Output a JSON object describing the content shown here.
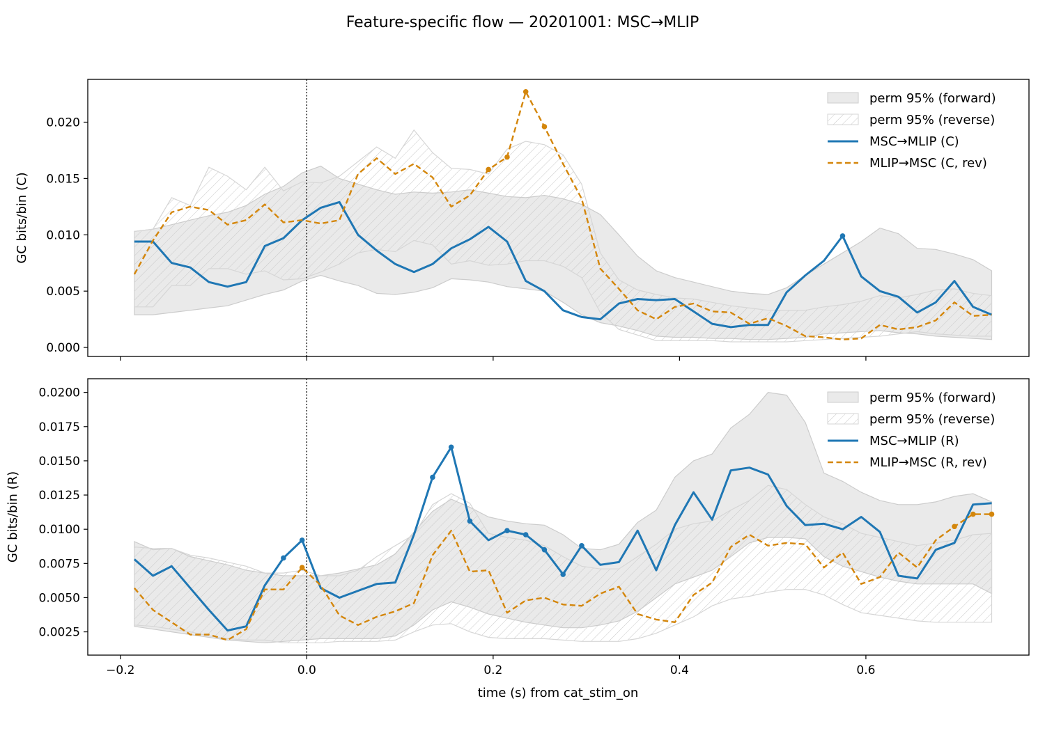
{
  "title": "Feature-specific flow — 20201001: MSC→MLIP",
  "xlabel": "time (s) from cat_stim_on",
  "colors": {
    "forward": "#1f77b4",
    "reverse": "#d4860b",
    "band": "#d9d9d9",
    "band_edge": "#cccccc",
    "hatch": "#c8c8c8"
  },
  "chart_data": [
    {
      "type": "line",
      "ylabel": "GC bits/bin (C)",
      "xlim": [
        -0.235,
        0.775
      ],
      "ylim": [
        -0.0008,
        0.0238
      ],
      "xticks": [
        -0.2,
        0.0,
        0.2,
        0.4,
        0.6
      ],
      "xtick_labels": [
        "",
        "",
        "",
        "",
        ""
      ],
      "yticks": [
        0.0,
        0.005,
        0.01,
        0.015,
        0.02
      ],
      "ytick_labels": [
        "0.000",
        "0.005",
        "0.010",
        "0.015",
        "0.020"
      ],
      "vline_x": 0.0,
      "legend_position": "top-right",
      "x": [
        -0.185,
        -0.165,
        -0.145,
        -0.125,
        -0.105,
        -0.085,
        -0.065,
        -0.045,
        -0.025,
        -0.005,
        0.015,
        0.035,
        0.055,
        0.075,
        0.095,
        0.115,
        0.135,
        0.155,
        0.175,
        0.195,
        0.215,
        0.235,
        0.255,
        0.275,
        0.295,
        0.315,
        0.335,
        0.355,
        0.375,
        0.395,
        0.415,
        0.435,
        0.455,
        0.475,
        0.495,
        0.515,
        0.535,
        0.555,
        0.575,
        0.595,
        0.615,
        0.635,
        0.655,
        0.675,
        0.695,
        0.715,
        0.735
      ],
      "bands": [
        {
          "name": "perm 95% (forward)",
          "style": "fill",
          "upper": [
            0.0103,
            0.0105,
            0.0109,
            0.0113,
            0.0117,
            0.012,
            0.0126,
            0.0136,
            0.0143,
            0.0155,
            0.0161,
            0.015,
            0.0145,
            0.014,
            0.0136,
            0.0138,
            0.0137,
            0.0138,
            0.014,
            0.0137,
            0.0134,
            0.0133,
            0.0135,
            0.0132,
            0.0127,
            0.0118,
            0.01,
            0.0081,
            0.0068,
            0.0062,
            0.0058,
            0.0054,
            0.005,
            0.0048,
            0.0047,
            0.0053,
            0.0064,
            0.0074,
            0.0084,
            0.0094,
            0.0106,
            0.0101,
            0.0088,
            0.0087,
            0.0083,
            0.0078,
            0.0068
          ],
          "lower": [
            0.0029,
            0.0029,
            0.0031,
            0.0033,
            0.0035,
            0.0037,
            0.0042,
            0.0047,
            0.0051,
            0.0059,
            0.0064,
            0.0059,
            0.0055,
            0.0048,
            0.0047,
            0.0049,
            0.0053,
            0.0061,
            0.006,
            0.0058,
            0.0054,
            0.0052,
            0.005,
            0.004,
            0.0029,
            0.0022,
            0.0019,
            0.0015,
            0.001,
            0.0009,
            0.0009,
            0.0008,
            0.0008,
            0.0007,
            0.0007,
            0.0008,
            0.0009,
            0.0012,
            0.0013,
            0.0014,
            0.0015,
            0.0013,
            0.0012,
            0.001,
            0.0009,
            0.0008,
            0.0007
          ]
        },
        {
          "name": "perm 95% (reverse)",
          "style": "hatch",
          "upper": [
            0.0103,
            0.0105,
            0.0133,
            0.0126,
            0.016,
            0.0152,
            0.014,
            0.016,
            0.0139,
            0.0147,
            0.0146,
            0.0152,
            0.0165,
            0.0178,
            0.0168,
            0.0193,
            0.0173,
            0.0159,
            0.0158,
            0.0154,
            0.0176,
            0.0183,
            0.018,
            0.0171,
            0.0145,
            0.0084,
            0.006,
            0.0051,
            0.0047,
            0.0044,
            0.0043,
            0.004,
            0.0037,
            0.0035,
            0.0033,
            0.0033,
            0.0033,
            0.0036,
            0.0038,
            0.0041,
            0.0046,
            0.0044,
            0.0047,
            0.0051,
            0.0052,
            0.0048,
            0.0046
          ],
          "lower": [
            0.0036,
            0.0036,
            0.0055,
            0.0055,
            0.007,
            0.007,
            0.0065,
            0.0068,
            0.006,
            0.0061,
            0.0067,
            0.0074,
            0.0084,
            0.0087,
            0.0085,
            0.0095,
            0.0091,
            0.0074,
            0.0077,
            0.0073,
            0.0074,
            0.0077,
            0.0077,
            0.0072,
            0.0062,
            0.0031,
            0.0016,
            0.0011,
            0.0006,
            0.0006,
            0.0006,
            0.0006,
            0.0005,
            0.0005,
            0.0005,
            0.0005,
            0.0006,
            0.0007,
            0.0008,
            0.0009,
            0.001,
            0.0012,
            0.0014,
            0.0012,
            0.0011,
            0.001,
            0.001
          ]
        }
      ],
      "series": [
        {
          "name": "MSC→MLIP (C)",
          "style": "solid",
          "values": [
            0.0094,
            0.0094,
            0.0075,
            0.0071,
            0.0058,
            0.0054,
            0.0058,
            0.009,
            0.0097,
            0.0113,
            0.0124,
            0.0129,
            0.01,
            0.0086,
            0.0074,
            0.0067,
            0.0074,
            0.0088,
            0.0096,
            0.0107,
            0.0094,
            0.0059,
            0.005,
            0.0033,
            0.0027,
            0.0025,
            0.0039,
            0.0043,
            0.0042,
            0.0043,
            0.0032,
            0.0021,
            0.0018,
            0.002,
            0.002,
            0.0049,
            0.0064,
            0.0077,
            0.0099,
            0.0063,
            0.005,
            0.0045,
            0.0031,
            0.004,
            0.0059,
            0.0036,
            0.0029
          ],
          "markers_x": [
            0.575
          ]
        },
        {
          "name": "MLIP→MSC (C, rev)",
          "style": "dashed",
          "values": [
            0.0065,
            0.0095,
            0.012,
            0.0125,
            0.0122,
            0.0109,
            0.0113,
            0.0127,
            0.0111,
            0.0113,
            0.011,
            0.0113,
            0.0154,
            0.0168,
            0.0154,
            0.0163,
            0.0151,
            0.0125,
            0.0135,
            0.0158,
            0.0169,
            0.0227,
            0.0196,
            0.0163,
            0.0132,
            0.007,
            0.0052,
            0.0033,
            0.0025,
            0.0036,
            0.0039,
            0.0032,
            0.0031,
            0.0021,
            0.0026,
            0.0019,
            0.001,
            0.0009,
            0.0007,
            0.0008,
            0.002,
            0.0016,
            0.0018,
            0.0024,
            0.004,
            0.0028,
            0.0029
          ],
          "markers_x": [
            0.195,
            0.215,
            0.235,
            0.255
          ]
        }
      ]
    },
    {
      "type": "line",
      "ylabel": "GC bits/bin (R)",
      "xlim": [
        -0.235,
        0.775
      ],
      "ylim": [
        0.0008,
        0.021
      ],
      "xticks": [
        -0.2,
        0.0,
        0.2,
        0.4,
        0.6
      ],
      "xtick_labels": [
        "−0.2",
        "0.0",
        "0.2",
        "0.4",
        "0.6"
      ],
      "yticks": [
        0.0025,
        0.005,
        0.0075,
        0.01,
        0.0125,
        0.015,
        0.0175,
        0.02
      ],
      "ytick_labels": [
        "0.0025",
        "0.0050",
        "0.0075",
        "0.0100",
        "0.0125",
        "0.0150",
        "0.0175",
        "0.0200"
      ],
      "vline_x": 0.0,
      "legend_position": "top-right",
      "x": [
        -0.185,
        -0.165,
        -0.145,
        -0.125,
        -0.105,
        -0.085,
        -0.065,
        -0.045,
        -0.025,
        -0.005,
        0.015,
        0.035,
        0.055,
        0.075,
        0.095,
        0.115,
        0.135,
        0.155,
        0.175,
        0.195,
        0.215,
        0.235,
        0.255,
        0.275,
        0.295,
        0.315,
        0.335,
        0.355,
        0.375,
        0.395,
        0.415,
        0.435,
        0.455,
        0.475,
        0.495,
        0.515,
        0.535,
        0.555,
        0.575,
        0.595,
        0.615,
        0.635,
        0.655,
        0.675,
        0.695,
        0.715,
        0.735
      ],
      "bands": [
        {
          "name": "perm 95% (forward)",
          "style": "fill",
          "upper": [
            0.0091,
            0.0085,
            0.0086,
            0.008,
            0.0077,
            0.0074,
            0.007,
            0.0068,
            0.0066,
            0.0066,
            0.0066,
            0.0068,
            0.0071,
            0.0074,
            0.0082,
            0.0098,
            0.0113,
            0.0122,
            0.0116,
            0.0109,
            0.0106,
            0.0104,
            0.0103,
            0.0096,
            0.0086,
            0.0085,
            0.0089,
            0.0105,
            0.0114,
            0.0138,
            0.015,
            0.0155,
            0.0174,
            0.0184,
            0.02,
            0.0198,
            0.0178,
            0.0141,
            0.0135,
            0.0127,
            0.0121,
            0.0118,
            0.0118,
            0.012,
            0.0124,
            0.0126,
            0.012
          ],
          "lower": [
            0.0029,
            0.0027,
            0.0025,
            0.0023,
            0.0021,
            0.0019,
            0.0018,
            0.0017,
            0.0018,
            0.0019,
            0.002,
            0.002,
            0.002,
            0.002,
            0.0022,
            0.003,
            0.0041,
            0.0047,
            0.0043,
            0.0038,
            0.0035,
            0.0032,
            0.003,
            0.0028,
            0.0028,
            0.003,
            0.0033,
            0.004,
            0.005,
            0.006,
            0.0065,
            0.007,
            0.008,
            0.009,
            0.0094,
            0.0094,
            0.0093,
            0.008,
            0.0073,
            0.0069,
            0.0065,
            0.0062,
            0.006,
            0.006,
            0.006,
            0.006,
            0.0053
          ]
        },
        {
          "name": "perm 95% (reverse)",
          "style": "hatch",
          "upper": [
            0.0087,
            0.0086,
            0.0086,
            0.0081,
            0.0079,
            0.0076,
            0.0073,
            0.0068,
            0.0068,
            0.007,
            0.0066,
            0.0066,
            0.007,
            0.008,
            0.0088,
            0.0096,
            0.0118,
            0.0126,
            0.0119,
            0.0097,
            0.0094,
            0.0092,
            0.0088,
            0.008,
            0.0073,
            0.0071,
            0.0071,
            0.008,
            0.0089,
            0.01,
            0.0104,
            0.0106,
            0.0114,
            0.0121,
            0.0132,
            0.0129,
            0.0118,
            0.0109,
            0.0104,
            0.0097,
            0.0094,
            0.0091,
            0.0088,
            0.009,
            0.0092,
            0.0096,
            0.0097
          ],
          "lower": [
            0.003,
            0.0029,
            0.0027,
            0.0025,
            0.0022,
            0.002,
            0.0019,
            0.0019,
            0.0017,
            0.0017,
            0.0017,
            0.0018,
            0.0018,
            0.0018,
            0.0019,
            0.0025,
            0.003,
            0.0031,
            0.0025,
            0.0021,
            0.002,
            0.002,
            0.002,
            0.0019,
            0.0018,
            0.0018,
            0.0018,
            0.002,
            0.0024,
            0.003,
            0.0036,
            0.0044,
            0.0049,
            0.0051,
            0.0054,
            0.0056,
            0.0056,
            0.0052,
            0.0045,
            0.0039,
            0.0037,
            0.0035,
            0.0033,
            0.0032,
            0.0032,
            0.0032,
            0.0032
          ]
        }
      ],
      "series": [
        {
          "name": "MSC→MLIP (R)",
          "style": "solid",
          "values": [
            0.0078,
            0.0066,
            0.0073,
            0.0057,
            0.0041,
            0.0026,
            0.0029,
            0.0059,
            0.0079,
            0.0092,
            0.0057,
            0.005,
            0.0055,
            0.006,
            0.0061,
            0.0096,
            0.0138,
            0.016,
            0.0106,
            0.0092,
            0.0099,
            0.0096,
            0.0085,
            0.0067,
            0.0088,
            0.0074,
            0.0076,
            0.0099,
            0.007,
            0.0103,
            0.0127,
            0.0107,
            0.0143,
            0.0145,
            0.014,
            0.0117,
            0.0103,
            0.0104,
            0.01,
            0.0109,
            0.0098,
            0.0066,
            0.0064,
            0.0085,
            0.009,
            0.0118,
            0.0119
          ],
          "markers_x": [
            -0.025,
            -0.005,
            0.135,
            0.155,
            0.175,
            0.215,
            0.235,
            0.255,
            0.275,
            0.295
          ]
        },
        {
          "name": "MLIP→MSC (R, rev)",
          "style": "dashed",
          "values": [
            0.0057,
            0.0041,
            0.0032,
            0.0023,
            0.0023,
            0.0019,
            0.0027,
            0.0056,
            0.0056,
            0.0072,
            0.0059,
            0.0037,
            0.003,
            0.0036,
            0.004,
            0.0046,
            0.0081,
            0.0099,
            0.0069,
            0.007,
            0.0039,
            0.0048,
            0.005,
            0.0045,
            0.0044,
            0.0053,
            0.0058,
            0.0038,
            0.0034,
            0.0032,
            0.0052,
            0.0061,
            0.0087,
            0.0096,
            0.0088,
            0.009,
            0.0089,
            0.0072,
            0.0083,
            0.006,
            0.0065,
            0.0083,
            0.0072,
            0.0092,
            0.0102,
            0.0111,
            0.0111
          ],
          "markers_x": [
            -0.005,
            0.695,
            0.715,
            0.735
          ]
        }
      ]
    }
  ]
}
